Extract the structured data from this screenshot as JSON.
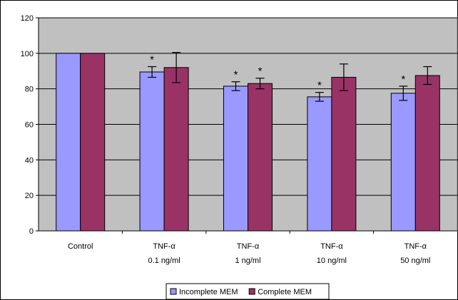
{
  "chart_data": {
    "type": "bar",
    "categories": [
      [
        "Control",
        ""
      ],
      [
        "TNF-α",
        "0.1 ng/ml"
      ],
      [
        "TNF-α",
        "1 ng/ml"
      ],
      [
        "TNF-α",
        "10 ng/ml"
      ],
      [
        "TNF-α",
        "50 ng/ml"
      ]
    ],
    "series": [
      {
        "name": "Incomplete MEM",
        "color": "#9999ff",
        "values": [
          100,
          89.5,
          81.5,
          75.5,
          77.5
        ],
        "errors": [
          0,
          3,
          2.5,
          2.5,
          4
        ],
        "significant": [
          false,
          true,
          true,
          true,
          true
        ]
      },
      {
        "name": "Complete MEM",
        "color": "#993366",
        "values": [
          100,
          92,
          83,
          86.5,
          87.5
        ],
        "errors": [
          0,
          8.5,
          3,
          7.5,
          5
        ],
        "significant": [
          false,
          false,
          true,
          false,
          false
        ]
      }
    ],
    "significance_marker": "*",
    "ylim": [
      0,
      120
    ],
    "yticks": [
      0,
      20,
      40,
      60,
      80,
      100,
      120
    ],
    "ytick_labels": [
      "0",
      "20",
      "40",
      "60",
      "80",
      "100",
      "120"
    ],
    "grid": true,
    "plot_background": "#c0c0c0",
    "legend_position": "bottom-center",
    "title": "",
    "xlabel": "",
    "ylabel": ""
  }
}
